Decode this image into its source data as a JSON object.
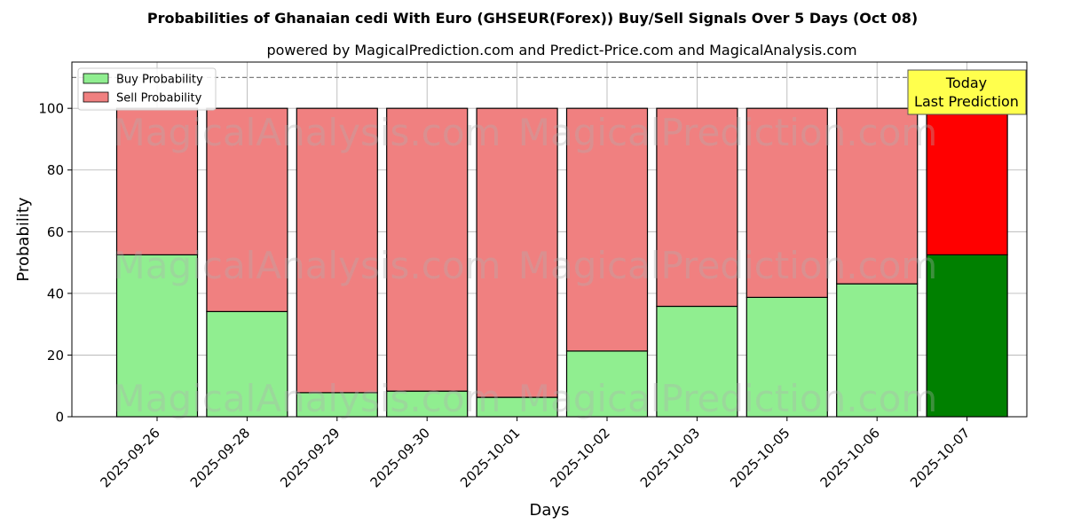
{
  "chart_data": {
    "type": "bar",
    "stacked": true,
    "title": "Probabilities of Ghanaian cedi With Euro (GHSEUR(Forex)) Buy/Sell Signals Over 5 Days (Oct 08)",
    "subtitle": "powered by MagicalPrediction.com and Predict-Price.com and MagicalAnalysis.com",
    "xlabel": "Days",
    "ylabel": "Probability",
    "ylim": [
      0,
      115
    ],
    "yticks": [
      0,
      20,
      40,
      60,
      80,
      100
    ],
    "grid": true,
    "legend_position": "top-left",
    "categories": [
      "2025-09-26",
      "2025-09-28",
      "2025-09-29",
      "2025-09-30",
      "2025-10-01",
      "2025-10-02",
      "2025-10-03",
      "2025-10-05",
      "2025-10-06",
      "2025-10-07"
    ],
    "series": [
      {
        "name": "Buy Probability",
        "values": [
          52.5,
          34.1,
          7.8,
          8.3,
          6.3,
          21.3,
          35.8,
          38.7,
          43.1,
          52.5
        ],
        "color": "#90ee90",
        "highlight_color": "#008000"
      },
      {
        "name": "Sell Probability",
        "values": [
          47.5,
          65.9,
          92.2,
          91.7,
          93.7,
          78.7,
          64.2,
          61.3,
          56.9,
          47.5
        ],
        "color": "#f08080",
        "highlight_color": "#ff0000"
      }
    ],
    "highlight_index": 9,
    "reference_line": {
      "value": 110,
      "style": "dashed",
      "color": "#808080"
    },
    "annotation": {
      "line1": "Today",
      "line2": "Last Prediction",
      "background": "#ffff4d"
    },
    "watermarks": [
      "MagicalAnalysis.com",
      "MagicalPrediction.com"
    ]
  }
}
